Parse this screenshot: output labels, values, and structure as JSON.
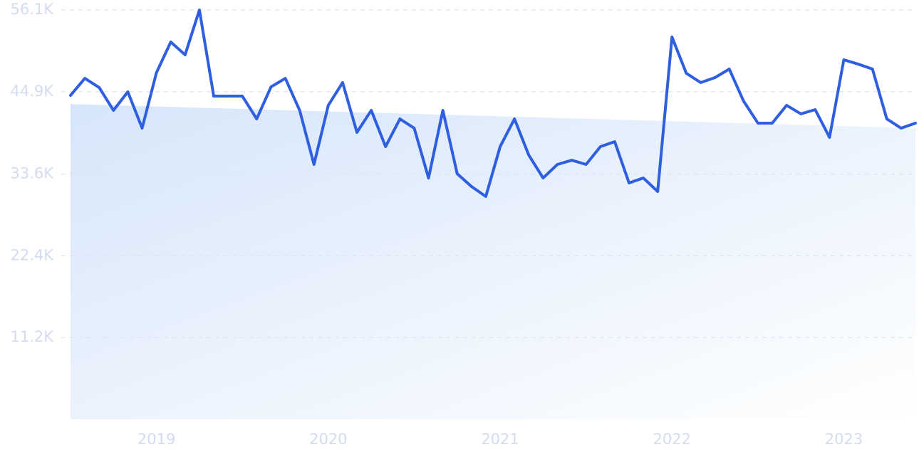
{
  "chart_data": {
    "type": "line",
    "categories": [
      null,
      null,
      null,
      null,
      null,
      null,
      "2019",
      null,
      null,
      null,
      null,
      null,
      null,
      null,
      null,
      null,
      null,
      null,
      "2020",
      null,
      null,
      null,
      null,
      null,
      null,
      null,
      null,
      null,
      null,
      null,
      "2021",
      null,
      null,
      null,
      null,
      null,
      null,
      null,
      null,
      null,
      null,
      null,
      "2022",
      null,
      null,
      null,
      null,
      null,
      null,
      null,
      null,
      null,
      null,
      null,
      "2023",
      null,
      null,
      null,
      null,
      null
    ],
    "series": [
      {
        "color": "#2f5fe0",
        "values": [
          44390,
          46730,
          45470,
          42340,
          44880,
          39900,
          47510,
          51710,
          49950,
          56100,
          44290,
          44290,
          44290,
          41170,
          45560,
          46730,
          42340,
          34930,
          43030,
          46150,
          39320,
          42340,
          37370,
          41170,
          39900,
          33070,
          42340,
          33660,
          31900,
          30540,
          37370,
          41170,
          36200,
          33070,
          34930,
          35510,
          34930,
          37370,
          38050,
          32390,
          33070,
          31220,
          52390,
          47420,
          46150,
          46830,
          48000,
          43610,
          40590,
          40590,
          43030,
          41860,
          42440,
          38640,
          49270,
          48680,
          48000,
          41170,
          39900,
          40590
        ]
      }
    ],
    "trend_area": {
      "values": [
        43200,
        39900
      ],
      "color": "#d6e6fa"
    },
    "ylim": [
      0,
      56100
    ],
    "yticks": [
      {
        "value": 11200,
        "label": "11.2K"
      },
      {
        "value": 22400,
        "label": "22.4K"
      },
      {
        "value": 33600,
        "label": "33.6K"
      },
      {
        "value": 44900,
        "label": "44.9K"
      },
      {
        "value": 56100,
        "label": "56.1K"
      }
    ],
    "grid": true
  }
}
